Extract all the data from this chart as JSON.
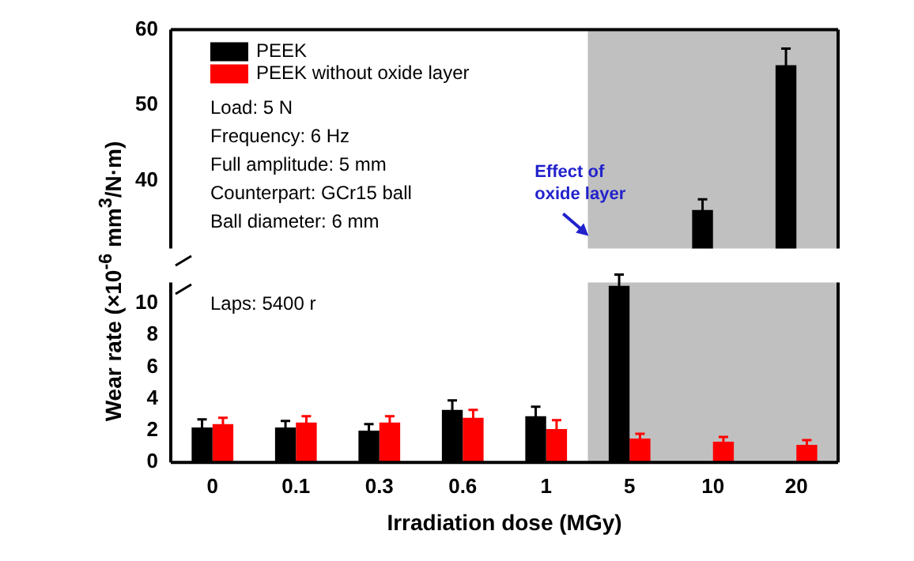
{
  "chart_data": [
    {
      "type": "bar",
      "categories": [
        "0",
        "0.1",
        "0.3",
        "0.6",
        "1",
        "5",
        "10",
        "20"
      ],
      "ylim": [
        31,
        60
      ],
      "yticks": [
        40,
        50,
        60
      ],
      "tick_labels": "y",
      "legend": "top left",
      "series": [
        {
          "name": "PEEK",
          "color": "#000000",
          "values": [
            null,
            null,
            null,
            null,
            null,
            null,
            36.1,
            55.3
          ],
          "errors": [
            null,
            null,
            null,
            null,
            null,
            null,
            1.4,
            2.2
          ]
        },
        {
          "name": "PEEK without oxide layer",
          "color": "#ff0000",
          "values": [
            null,
            null,
            null,
            null,
            null,
            null,
            null,
            null
          ]
        }
      ],
      "bands": [
        {
          "axis": "x",
          "from": "5",
          "to": "20",
          "color": "#c0c0c0"
        }
      ],
      "annotations": [
        "Load: 5 N",
        "Frequency: 6 Hz",
        "Full amplitude: 5 mm",
        "Counterpart: GCr15 ball",
        "Ball diameter: 6 mm",
        "Effect of oxide layer"
      ]
    },
    {
      "type": "bar",
      "categories": [
        "0",
        "0.1",
        "0.3",
        "0.6",
        "1",
        "5",
        "10",
        "20"
      ],
      "ylim": [
        0,
        11.3
      ],
      "yticks": [
        0,
        2,
        4,
        6,
        8,
        10
      ],
      "xlabel": "Irradiation dose (MGy)",
      "ylabel": "Wear rate (×10$^{-6}$ mm$^{3}$/N·m)",
      "series": [
        {
          "color": "#000000",
          "values": [
            2.2,
            2.2,
            2.0,
            3.3,
            2.9,
            11.1,
            null,
            null
          ],
          "errors": [
            0.5,
            0.4,
            0.4,
            0.6,
            0.6,
            0.7,
            null,
            null
          ]
        },
        {
          "color": "#ff0000",
          "values": [
            2.4,
            2.5,
            2.5,
            2.8,
            2.1,
            1.5,
            1.3,
            1.1
          ],
          "errors": [
            0.4,
            0.4,
            0.4,
            0.5,
            0.55,
            0.3,
            0.3,
            0.3
          ]
        }
      ],
      "bands": [
        {
          "axis": "x",
          "from": "5",
          "to": "20",
          "color": "#c0c0c0"
        }
      ],
      "annotations": [
        "Laps: 5400 r"
      ]
    }
  ]
}
